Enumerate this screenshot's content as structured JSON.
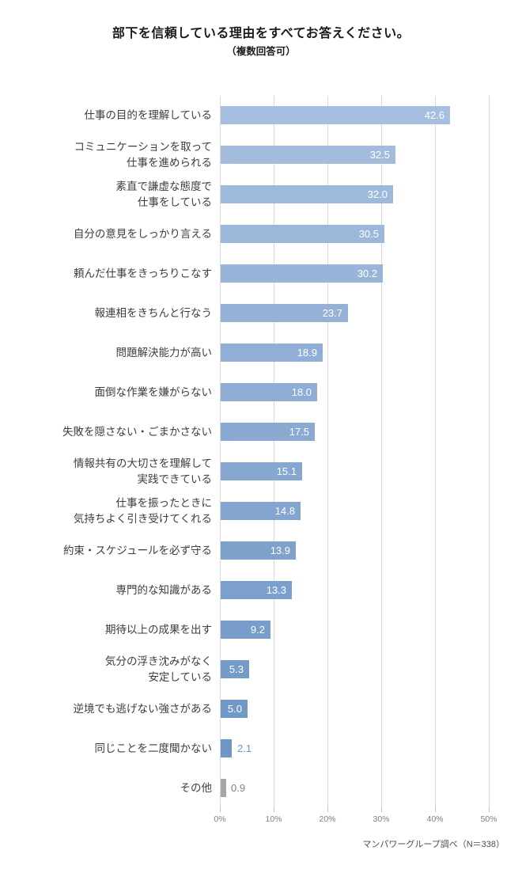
{
  "title": "部下を信頼している理由をすべてお答えください。",
  "subtitle": "（複数回答可）",
  "footer": "マンパワーグループ調べ（N＝338）",
  "colors": {
    "gridline": "#d9d9d9",
    "tick": "#bfbfbf",
    "bar_gradient_start": "#A6BEDF",
    "bar_gradient_end": "#6E96C6",
    "other_bar": "#A6A6A6",
    "value_inside": "#FFFFFF"
  },
  "chart_data": {
    "type": "bar",
    "orientation": "horizontal",
    "title": "部下を信頼している理由をすべてお答えください。",
    "subtitle": "（複数回答可）",
    "xlabel": "",
    "ylabel": "",
    "xlim": [
      0,
      50
    ],
    "grid": true,
    "unit": "%",
    "x_ticks": [
      {
        "value": 0,
        "label": "0%"
      },
      {
        "value": 10,
        "label": "10%"
      },
      {
        "value": 20,
        "label": "20%"
      },
      {
        "value": 30,
        "label": "30%"
      },
      {
        "value": 40,
        "label": "40%"
      },
      {
        "value": 50,
        "label": "50%"
      }
    ],
    "categories": [
      "仕事の目的を理解している",
      "コミュニケーションを取って\n仕事を進められる",
      "素直で謙虚な態度で\n仕事をしている",
      "自分の意見をしっかり言える",
      "頼んだ仕事をきっちりこなす",
      "報連相をきちんと行なう",
      "問題解決能力が高い",
      "面倒な作業を嫌がらない",
      "失敗を隠さない・ごまかさない",
      "情報共有の大切さを理解して\n実践できている",
      "仕事を振ったときに\n気持ちよく引き受けてくれる",
      "約束・スケジュールを必ず守る",
      "専門的な知識がある",
      "期待以上の成果を出す",
      "気分の浮き沈みがなく\n安定している",
      "逆境でも逃げない強さがある",
      "同じことを二度聞かない",
      "その他"
    ],
    "values": [
      42.6,
      32.5,
      32.0,
      30.5,
      30.2,
      23.7,
      18.9,
      18.0,
      17.5,
      15.1,
      14.8,
      13.9,
      13.3,
      9.2,
      5.3,
      5.0,
      2.1,
      0.9
    ],
    "items": [
      {
        "label": "仕事の目的を理解している",
        "value": 42.6,
        "display": "42.6",
        "color": "#A6BEDF",
        "value_pos": "inside",
        "value_color": "#FFFFFF"
      },
      {
        "label": "コミュニケーションを取って\n仕事を進められる",
        "value": 32.5,
        "display": "32.5",
        "color": "#A3BCDD",
        "value_pos": "inside",
        "value_color": "#FFFFFF"
      },
      {
        "label": "素直で謙虚な態度で\n仕事をしている",
        "value": 32.0,
        "display": "32.0",
        "color": "#9FB9DC",
        "value_pos": "inside",
        "value_color": "#FFFFFF"
      },
      {
        "label": "自分の意見をしっかり言える",
        "value": 30.5,
        "display": "30.5",
        "color": "#9CB7DA",
        "value_pos": "inside",
        "value_color": "#FFFFFF"
      },
      {
        "label": "頼んだ仕事をきっちりこなす",
        "value": 30.2,
        "display": "30.2",
        "color": "#98B4D9",
        "value_pos": "inside",
        "value_color": "#FFFFFF"
      },
      {
        "label": "報連相をきちんと行なう",
        "value": 23.7,
        "display": "23.7",
        "color": "#95B1D7",
        "value_pos": "inside",
        "value_color": "#FFFFFF"
      },
      {
        "label": "問題解決能力が高い",
        "value": 18.9,
        "display": "18.9",
        "color": "#91AFD6",
        "value_pos": "inside",
        "value_color": "#FFFFFF"
      },
      {
        "label": "面倒な作業を嫌がらない",
        "value": 18.0,
        "display": "18.0",
        "color": "#8EACD4",
        "value_pos": "inside",
        "value_color": "#FFFFFF"
      },
      {
        "label": "失敗を隠さない・ごまかさない",
        "value": 17.5,
        "display": "17.5",
        "color": "#8AAAD2",
        "value_pos": "inside",
        "value_color": "#FFFFFF"
      },
      {
        "label": "情報共有の大切さを理解して\n実践できている",
        "value": 15.1,
        "display": "15.1",
        "color": "#86A7D0",
        "value_pos": "inside",
        "value_color": "#FFFFFF"
      },
      {
        "label": "仕事を振ったときに\n気持ちよく引き受けてくれる",
        "value": 14.8,
        "display": "14.8",
        "color": "#83A5CF",
        "value_pos": "inside",
        "value_color": "#FFFFFF"
      },
      {
        "label": "約束・スケジュールを必ず守る",
        "value": 13.9,
        "display": "13.9",
        "color": "#7FA2CD",
        "value_pos": "inside",
        "value_color": "#FFFFFF"
      },
      {
        "label": "専門的な知識がある",
        "value": 13.3,
        "display": "13.3",
        "color": "#7CA0CC",
        "value_pos": "inside",
        "value_color": "#FFFFFF"
      },
      {
        "label": "期待以上の成果を出す",
        "value": 9.2,
        "display": "9.2",
        "color": "#789DCA",
        "value_pos": "inside",
        "value_color": "#FFFFFF"
      },
      {
        "label": "気分の浮き沈みがなく\n安定している",
        "value": 5.3,
        "display": "5.3",
        "color": "#759BC9",
        "value_pos": "inside",
        "value_color": "#FFFFFF"
      },
      {
        "label": "逆境でも逃げない強さがある",
        "value": 5.0,
        "display": "5.0",
        "color": "#7198C7",
        "value_pos": "inside",
        "value_color": "#FFFFFF"
      },
      {
        "label": "同じことを二度聞かない",
        "value": 2.1,
        "display": "2.1",
        "color": "#6E96C6",
        "value_pos": "outside",
        "value_color": "#6E96C6"
      },
      {
        "label": "その他",
        "value": 0.9,
        "display": "0.9",
        "color": "#A6A6A6",
        "value_pos": "outside",
        "value_color": "#808080"
      }
    ]
  }
}
